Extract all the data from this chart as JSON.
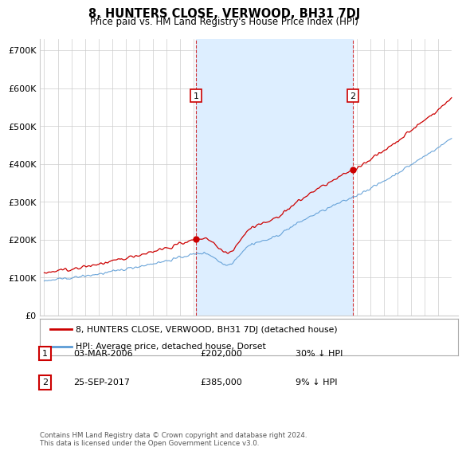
{
  "title": "8, HUNTERS CLOSE, VERWOOD, BH31 7DJ",
  "subtitle": "Price paid vs. HM Land Registry's House Price Index (HPI)",
  "ylabel_ticks": [
    "£0",
    "£100K",
    "£200K",
    "£300K",
    "£400K",
    "£500K",
    "£600K",
    "£700K"
  ],
  "ylim": [
    0,
    730000
  ],
  "xlim_start": 1994.7,
  "xlim_end": 2025.5,
  "hpi_color": "#5b9bd5",
  "property_color": "#cc0000",
  "transaction1_x": 2006.17,
  "transaction1_y": 202000,
  "transaction1_label": "1",
  "transaction2_x": 2017.73,
  "transaction2_y": 385000,
  "transaction2_label": "2",
  "shade_color": "#ddeeff",
  "legend_property": "8, HUNTERS CLOSE, VERWOOD, BH31 7DJ (detached house)",
  "legend_hpi": "HPI: Average price, detached house, Dorset",
  "table_row1": [
    "1",
    "03-MAR-2006",
    "£202,000",
    "30% ↓ HPI"
  ],
  "table_row2": [
    "2",
    "25-SEP-2017",
    "£385,000",
    "9% ↓ HPI"
  ],
  "footer": "Contains HM Land Registry data © Crown copyright and database right 2024.\nThis data is licensed under the Open Government Licence v3.0.",
  "background_color": "#ffffff",
  "grid_color": "#cccccc"
}
